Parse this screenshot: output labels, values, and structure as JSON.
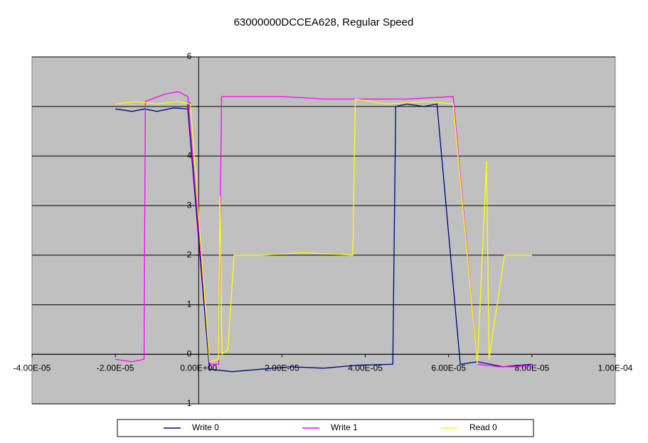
{
  "chart_data": {
    "type": "line",
    "title": "63000000DCCEA628, Regular Speed",
    "xlim": [
      -4e-05,
      0.0001
    ],
    "xticks": [
      {
        "value": -4e-05,
        "label": "-4.00E-05"
      },
      {
        "value": -2e-05,
        "label": "-2.00E-05"
      },
      {
        "value": 0,
        "label": "0.00E+00"
      },
      {
        "value": 2e-05,
        "label": "2.00E-05"
      },
      {
        "value": 4e-05,
        "label": "4.00E-05"
      },
      {
        "value": 6e-05,
        "label": "6.00E-05"
      },
      {
        "value": 8e-05,
        "label": "8.00E-05"
      },
      {
        "value": 0.0001,
        "label": "1.00E-04"
      }
    ],
    "ylim": [
      -1,
      6
    ],
    "yticks": [
      -1,
      0,
      1,
      2,
      3,
      4,
      5,
      6
    ],
    "grid": true,
    "legend": "bottom",
    "series": [
      {
        "name": "Write 0",
        "color": "#000080",
        "x": [
          -2e-05,
          -1.6e-05,
          -1.3e-05,
          -1e-05,
          -6e-06,
          -2.6e-06,
          2.6e-06,
          8e-06,
          1.5e-05,
          2.2e-05,
          3e-05,
          3.8e-05,
          4.66e-05,
          4.73e-05,
          5e-05,
          5.4e-05,
          5.72e-05,
          6.28e-05,
          6.7e-05,
          7.3e-05,
          8e-05
        ],
        "values": [
          4.95,
          4.9,
          4.95,
          4.9,
          4.97,
          4.95,
          -0.3,
          -0.35,
          -0.3,
          -0.25,
          -0.28,
          -0.22,
          -0.2,
          5.0,
          5.05,
          5.0,
          5.05,
          -0.2,
          -0.15,
          -0.25,
          -0.2
        ]
      },
      {
        "name": "Write 1",
        "color": "#ff00ff",
        "x": [
          -2e-05,
          -1.6e-05,
          -1.31e-05,
          -1.28e-05,
          -8e-06,
          -5e-06,
          -2.6e-06,
          2.7e-06,
          4.8e-06,
          5.5e-06,
          1e-05,
          2e-05,
          3e-05,
          4e-05,
          5e-05,
          6.11e-05,
          6.69e-05,
          7.2e-05,
          8e-05
        ],
        "values": [
          -0.1,
          -0.15,
          -0.1,
          5.1,
          5.25,
          5.3,
          5.2,
          -0.2,
          -0.2,
          5.2,
          5.2,
          5.2,
          5.15,
          5.15,
          5.15,
          5.2,
          -0.2,
          -0.25,
          -0.25
        ]
      },
      {
        "name": "Read 0",
        "color": "#ffff00",
        "x": [
          -2e-05,
          -1.5e-05,
          -1e-05,
          -5e-06,
          -2e-06,
          2.6e-06,
          4.8e-06,
          5.1e-06,
          5.6e-06,
          7e-06,
          8.5e-06,
          1.5e-05,
          2.5e-05,
          3.7e-05,
          3.76e-05,
          4.5e-05,
          5.5e-05,
          6.11e-05,
          6.69e-05,
          6.91e-05,
          6.97e-05,
          7.34e-05,
          8e-05
        ],
        "values": [
          5.05,
          5.1,
          5.05,
          5.1,
          5.05,
          -0.15,
          -0.1,
          3.2,
          0,
          0.1,
          2.0,
          2.0,
          2.05,
          2.0,
          5.15,
          5.05,
          5.1,
          5.05,
          -0.2,
          3.9,
          -0.1,
          2.0,
          2.0
        ]
      }
    ]
  }
}
